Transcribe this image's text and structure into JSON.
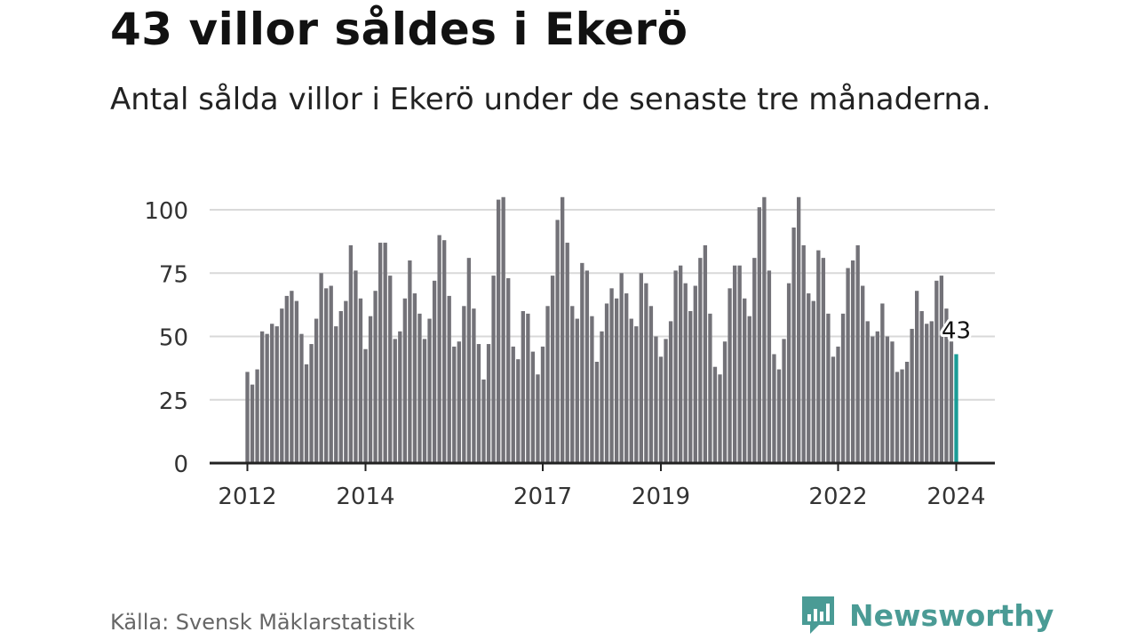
{
  "header": {
    "title": "43 villor såldes i Ekerö",
    "subtitle": "Antal sålda villor i Ekerö under de senaste tre månaderna."
  },
  "footer": {
    "source": "Källa: Svensk Mäklarstatistik",
    "brand": "Newsworthy"
  },
  "colors": {
    "bar": "#737278",
    "highlight": "#1a9c96",
    "grid": "#d9d9d9",
    "axis": "#222222",
    "brand": "#4a9b95"
  },
  "chart_data": {
    "type": "bar",
    "title": "43 villor såldes i Ekerö",
    "xlabel": "",
    "ylabel": "",
    "ylim": [
      0,
      105
    ],
    "yticks": [
      0,
      25,
      50,
      75,
      100
    ],
    "xtick_labels": [
      {
        "label": "2012",
        "index": 0
      },
      {
        "label": "2014",
        "index": 24
      },
      {
        "label": "2017",
        "index": 60
      },
      {
        "label": "2019",
        "index": 84
      },
      {
        "label": "2022",
        "index": 120
      },
      {
        "label": "2024",
        "index": 144
      }
    ],
    "gaps_after_index": [
      23,
      59,
      83,
      119,
      143
    ],
    "highlight_index": 144,
    "highlight_label": "43",
    "values": [
      36,
      31,
      37,
      52,
      51,
      55,
      54,
      61,
      66,
      68,
      64,
      51,
      39,
      47,
      57,
      75,
      69,
      70,
      54,
      60,
      64,
      86,
      76,
      65,
      45,
      58,
      68,
      87,
      87,
      74,
      49,
      52,
      65,
      80,
      67,
      59,
      49,
      57,
      72,
      90,
      88,
      66,
      46,
      48,
      62,
      81,
      61,
      47,
      33,
      47,
      74,
      104,
      105,
      73,
      46,
      41,
      60,
      59,
      44,
      35,
      46,
      62,
      74,
      96,
      105,
      87,
      62,
      57,
      79,
      76,
      58,
      40,
      52,
      63,
      69,
      65,
      75,
      67,
      57,
      54,
      75,
      71,
      62,
      50,
      42,
      49,
      56,
      76,
      78,
      71,
      60,
      70,
      81,
      86,
      59,
      38,
      35,
      48,
      69,
      78,
      78,
      65,
      58,
      81,
      101,
      105,
      76,
      43,
      37,
      49,
      71,
      93,
      105,
      86,
      67,
      64,
      84,
      81,
      59,
      42,
      46,
      59,
      77,
      80,
      86,
      70,
      56,
      50,
      52,
      63,
      50,
      48,
      36,
      37,
      40,
      53,
      68,
      60,
      55,
      56,
      72,
      74,
      61,
      48,
      43
    ]
  }
}
